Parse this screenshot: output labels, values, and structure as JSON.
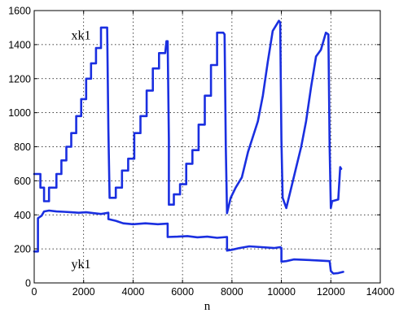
{
  "chart_data": {
    "type": "line",
    "title": "",
    "xlabel": "n",
    "ylabel": "",
    "xlim": [
      0,
      14000
    ],
    "ylim": [
      0,
      1600
    ],
    "xticks": [
      0,
      2000,
      4000,
      6000,
      8000,
      10000,
      12000,
      14000
    ],
    "yticks": [
      0,
      200,
      400,
      600,
      800,
      1000,
      1200,
      1400,
      1600
    ],
    "grid": true,
    "line_color": "#1a2fe0",
    "annotations": [
      {
        "text": "xk1",
        "x": 1500,
        "y": 1430
      },
      {
        "text": "yk1",
        "x": 1500,
        "y": 85
      }
    ],
    "series": [
      {
        "name": "xk1",
        "x": [
          0,
          250,
          250,
          400,
          400,
          600,
          600,
          900,
          900,
          1100,
          1100,
          1300,
          1300,
          1500,
          1500,
          1700,
          1700,
          1900,
          1900,
          2100,
          2100,
          2300,
          2300,
          2500,
          2500,
          2700,
          2700,
          2950,
          3000,
          3050,
          3100,
          3100,
          3300,
          3300,
          3550,
          3550,
          3800,
          3800,
          4050,
          4050,
          4300,
          4300,
          4550,
          4550,
          4800,
          4800,
          5050,
          5050,
          5300,
          5350,
          5400,
          5450,
          5450,
          5650,
          5650,
          5900,
          5900,
          6150,
          6150,
          6400,
          6400,
          6650,
          6650,
          6900,
          6900,
          7150,
          7150,
          7400,
          7400,
          7650,
          7700,
          7750,
          7800,
          7800,
          7950,
          7950,
          8150,
          8150,
          8400,
          8400,
          8650,
          8650,
          8850,
          8850,
          9050,
          9050,
          9250,
          9250,
          9450,
          9450,
          9650,
          9650,
          9900,
          9950,
          10000,
          10050,
          10050,
          10200,
          10200,
          10400,
          10400,
          10600,
          10600,
          10800,
          10800,
          11000,
          11000,
          11200,
          11200,
          11400,
          11400,
          11600,
          11600,
          11800,
          11800,
          11900,
          11950,
          12000,
          12050,
          12050,
          12300,
          12300,
          12380,
          12420
        ],
        "y": [
          640,
          640,
          560,
          560,
          480,
          480,
          560,
          560,
          640,
          640,
          720,
          720,
          800,
          800,
          880,
          880,
          980,
          980,
          1080,
          1080,
          1200,
          1200,
          1290,
          1290,
          1380,
          1380,
          1500,
          1500,
          900,
          500,
          500,
          500,
          500,
          560,
          560,
          660,
          660,
          730,
          730,
          880,
          880,
          980,
          980,
          1130,
          1130,
          1260,
          1260,
          1350,
          1350,
          1420,
          1420,
          840,
          460,
          460,
          520,
          520,
          580,
          580,
          700,
          700,
          780,
          780,
          930,
          930,
          1100,
          1100,
          1280,
          1280,
          1470,
          1470,
          1460,
          800,
          410,
          410,
          500,
          500,
          560,
          560,
          620,
          620,
          770,
          770,
          860,
          860,
          950,
          950,
          1100,
          1100,
          1300,
          1300,
          1480,
          1480,
          1540,
          1530,
          840,
          500,
          500,
          440,
          440,
          560,
          560,
          680,
          680,
          800,
          800,
          950,
          950,
          1150,
          1150,
          1330,
          1330,
          1370,
          1370,
          1470,
          1470,
          1460,
          800,
          440,
          480,
          480,
          490,
          490,
          680,
          670
        ]
      },
      {
        "name": "yk1",
        "x": [
          0,
          150,
          150,
          300,
          400,
          600,
          900,
          1200,
          1500,
          1800,
          2100,
          2400,
          2700,
          3000,
          3000,
          3300,
          3600,
          4000,
          4500,
          5000,
          5400,
          5400,
          5800,
          6200,
          6600,
          7000,
          7400,
          7800,
          7800,
          8000,
          8300,
          8700,
          9200,
          9700,
          9950,
          10000,
          10000,
          10200,
          10500,
          11000,
          11500,
          11950,
          12000,
          12100,
          12300,
          12500
        ],
        "y": [
          185,
          185,
          380,
          395,
          420,
          425,
          420,
          418,
          415,
          412,
          415,
          410,
          405,
          412,
          375,
          365,
          350,
          345,
          350,
          345,
          348,
          270,
          272,
          275,
          268,
          272,
          265,
          270,
          190,
          195,
          205,
          215,
          210,
          205,
          210,
          205,
          125,
          128,
          138,
          135,
          132,
          128,
          70,
          55,
          58,
          65
        ]
      }
    ]
  }
}
